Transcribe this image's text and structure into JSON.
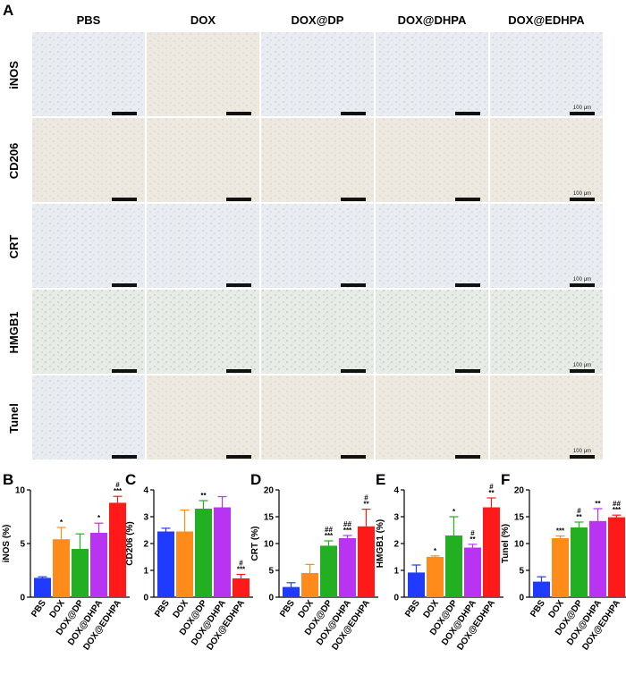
{
  "panel_letters": {
    "A": "A",
    "B": "B",
    "C": "C",
    "D": "D",
    "E": "E",
    "F": "F"
  },
  "groups": [
    "PBS",
    "DOX",
    "DOX@DP",
    "DOX@DHPA",
    "DOX@EDHPA"
  ],
  "stains": [
    "iNOS",
    "CD206",
    "CRT",
    "HMGB1",
    "Tunel"
  ],
  "scale_bar_label": "100 μm",
  "colors": {
    "PBS": "#1f3bff",
    "DOX": "#ff8c1a",
    "DOX@DP": "#22b022",
    "DOX@DHPA": "#b933f2",
    "DOX@EDHPA": "#ff1a1a",
    "tile_blue_bg": "#e9edf1",
    "tile_beige_bg": "#eee9e0",
    "tile_green_bg": "#e7ece6"
  },
  "chart_data": [
    {
      "type": "bar",
      "letter": "B",
      "ylabel": "iNOS (%)",
      "ylim": [
        0,
        10
      ],
      "yticks": [
        "0",
        "5",
        "10"
      ],
      "categories": [
        "PBS",
        "DOX",
        "DOX@DP",
        "DOX@DHPA",
        "DOX@EDHPA"
      ],
      "values": [
        1.8,
        5.4,
        4.5,
        6.0,
        8.8
      ],
      "errors": [
        0.1,
        1.1,
        1.4,
        0.9,
        0.6
      ],
      "annotations": [
        [],
        [
          "*"
        ],
        [],
        [
          "*"
        ],
        [
          "#",
          "***"
        ]
      ]
    },
    {
      "type": "bar",
      "letter": "C",
      "ylabel": "CD206 (%)",
      "ylim": [
        0,
        4
      ],
      "yticks": [
        "0",
        "1",
        "2",
        "3",
        "4"
      ],
      "categories": [
        "PBS",
        "DOX",
        "DOX@DP",
        "DOX@DHPA",
        "DOX@EDHPA"
      ],
      "values": [
        2.45,
        2.45,
        3.3,
        3.35,
        0.7
      ],
      "errors": [
        0.12,
        0.8,
        0.3,
        0.4,
        0.15
      ],
      "annotations": [
        [],
        [],
        [
          "**"
        ],
        [],
        [
          "#",
          "***"
        ]
      ]
    },
    {
      "type": "bar",
      "letter": "D",
      "ylabel": "CRT (%)",
      "ylim": [
        0,
        20
      ],
      "yticks": [
        "0",
        "5",
        "10",
        "15",
        "20"
      ],
      "categories": [
        "PBS",
        "DOX",
        "DOX@DP",
        "DOX@DHPA",
        "DOX@EDHPA"
      ],
      "values": [
        1.9,
        4.5,
        9.6,
        11.0,
        13.2
      ],
      "errors": [
        0.8,
        1.6,
        0.9,
        0.5,
        3.2
      ],
      "annotations": [
        [],
        [],
        [
          "##",
          "***"
        ],
        [
          "##",
          "***"
        ],
        [
          "#",
          "**"
        ]
      ]
    },
    {
      "type": "bar",
      "letter": "E",
      "ylabel": "HMGB1 (%)",
      "ylim": [
        0,
        4
      ],
      "yticks": [
        "0",
        "1",
        "2",
        "3",
        "4"
      ],
      "categories": [
        "PBS",
        "DOX",
        "DOX@DP",
        "DOX@DHPA",
        "DOX@EDHPA"
      ],
      "values": [
        0.92,
        1.5,
        2.3,
        1.85,
        3.35
      ],
      "errors": [
        0.28,
        0.04,
        0.7,
        0.12,
        0.35
      ],
      "annotations": [
        [],
        [
          "*"
        ],
        [
          "*"
        ],
        [
          "#",
          "**"
        ],
        [
          "#",
          "**"
        ]
      ]
    },
    {
      "type": "bar",
      "letter": "F",
      "ylabel": "Tunel (%)",
      "ylim": [
        0,
        20
      ],
      "yticks": [
        "0",
        "5",
        "10",
        "15",
        "20"
      ],
      "categories": [
        "PBS",
        "DOX",
        "DOX@DP",
        "DOX@DHPA",
        "DOX@EDHPA"
      ],
      "values": [
        2.9,
        11.0,
        13.0,
        14.2,
        14.9
      ],
      "errors": [
        0.9,
        0.4,
        1.0,
        2.3,
        0.4
      ],
      "annotations": [
        [],
        [
          "***"
        ],
        [
          "#",
          "**"
        ],
        [
          "**"
        ],
        [
          "##",
          "***"
        ]
      ]
    }
  ]
}
